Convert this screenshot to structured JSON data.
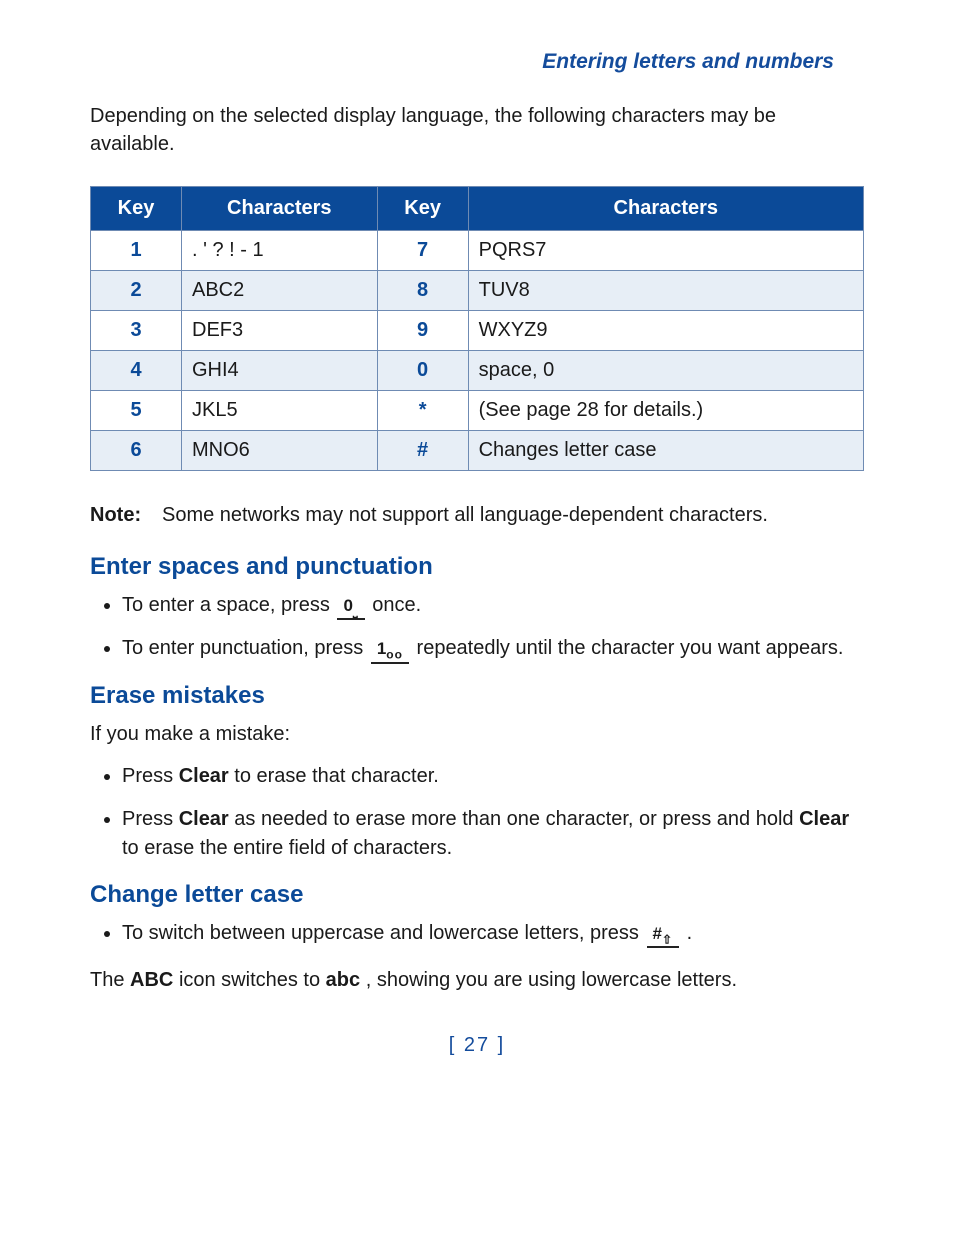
{
  "header": {
    "title": "Entering letters and numbers"
  },
  "intro": "Depending on the selected display language, the following characters may be available.",
  "table": {
    "headers": [
      "Key",
      "Characters",
      "Key",
      "Characters"
    ],
    "rows": [
      {
        "k1": "1",
        "c1": ". ' ? ! - 1",
        "k2": "7",
        "c2": "PQRS7",
        "stripe": false
      },
      {
        "k1": "2",
        "c1": "ABC2",
        "k2": "8",
        "c2": "TUV8",
        "stripe": true
      },
      {
        "k1": "3",
        "c1": "DEF3",
        "k2": "9",
        "c2": "WXYZ9",
        "stripe": false
      },
      {
        "k1": "4",
        "c1": "GHI4",
        "k2": "0",
        "c2": "space, 0",
        "stripe": true
      },
      {
        "k1": "5",
        "c1": "JKL5",
        "k2": "*",
        "c2": "(See page 28 for details.)",
        "stripe": false
      },
      {
        "k1": "6",
        "c1": "MNO6",
        "k2": "#",
        "c2": "Changes letter case",
        "stripe": true
      }
    ]
  },
  "note": {
    "label": "Note:",
    "text": "Some networks may not support all language-dependent characters."
  },
  "sections": {
    "spaces": {
      "title": "Enter spaces and punctuation",
      "b1a": "To enter a space, press ",
      "b1b": " once.",
      "key0_main": "0",
      "key0_sub": "⎵",
      "b2a": "To enter punctuation, press ",
      "b2b": " repeatedly until the character you want appears.",
      "key1_main": "1",
      "key1_sub": "oo"
    },
    "erase": {
      "title": "Erase mistakes",
      "lead": "If you make a mistake:",
      "b1a": "Press ",
      "b1b": " to erase that character.",
      "b2a": "Press ",
      "b2b": " as needed to erase more than one character, or press and hold ",
      "b2c": " to erase the entire field of characters.",
      "clear": "Clear"
    },
    "case": {
      "title": "Change letter case",
      "b1a": "To switch between uppercase and lowercase letters, press ",
      "b1b": ".",
      "keyhash_main": "#",
      "keyhash_sub": "⇧",
      "closing_a": "The ",
      "closing_b": " icon switches to ",
      "closing_c": ", showing you are using lowercase letters.",
      "ABC": "ABC",
      "abc": "abc"
    }
  },
  "page_number": "[ 27 ]",
  "colors": {
    "brand_blue": "#0b4a98",
    "header_blue": "#144c9c",
    "stripe_bg": "#e7eef6",
    "border": "#6f8bb3",
    "text": "#1a1a1a",
    "background": "#ffffff"
  },
  "typography": {
    "body_fontsize_pt": 15,
    "heading_fontsize_pt": 18,
    "header_title_fontsize_pt": 16,
    "font_family": "Lucida Sans / sans-serif"
  }
}
